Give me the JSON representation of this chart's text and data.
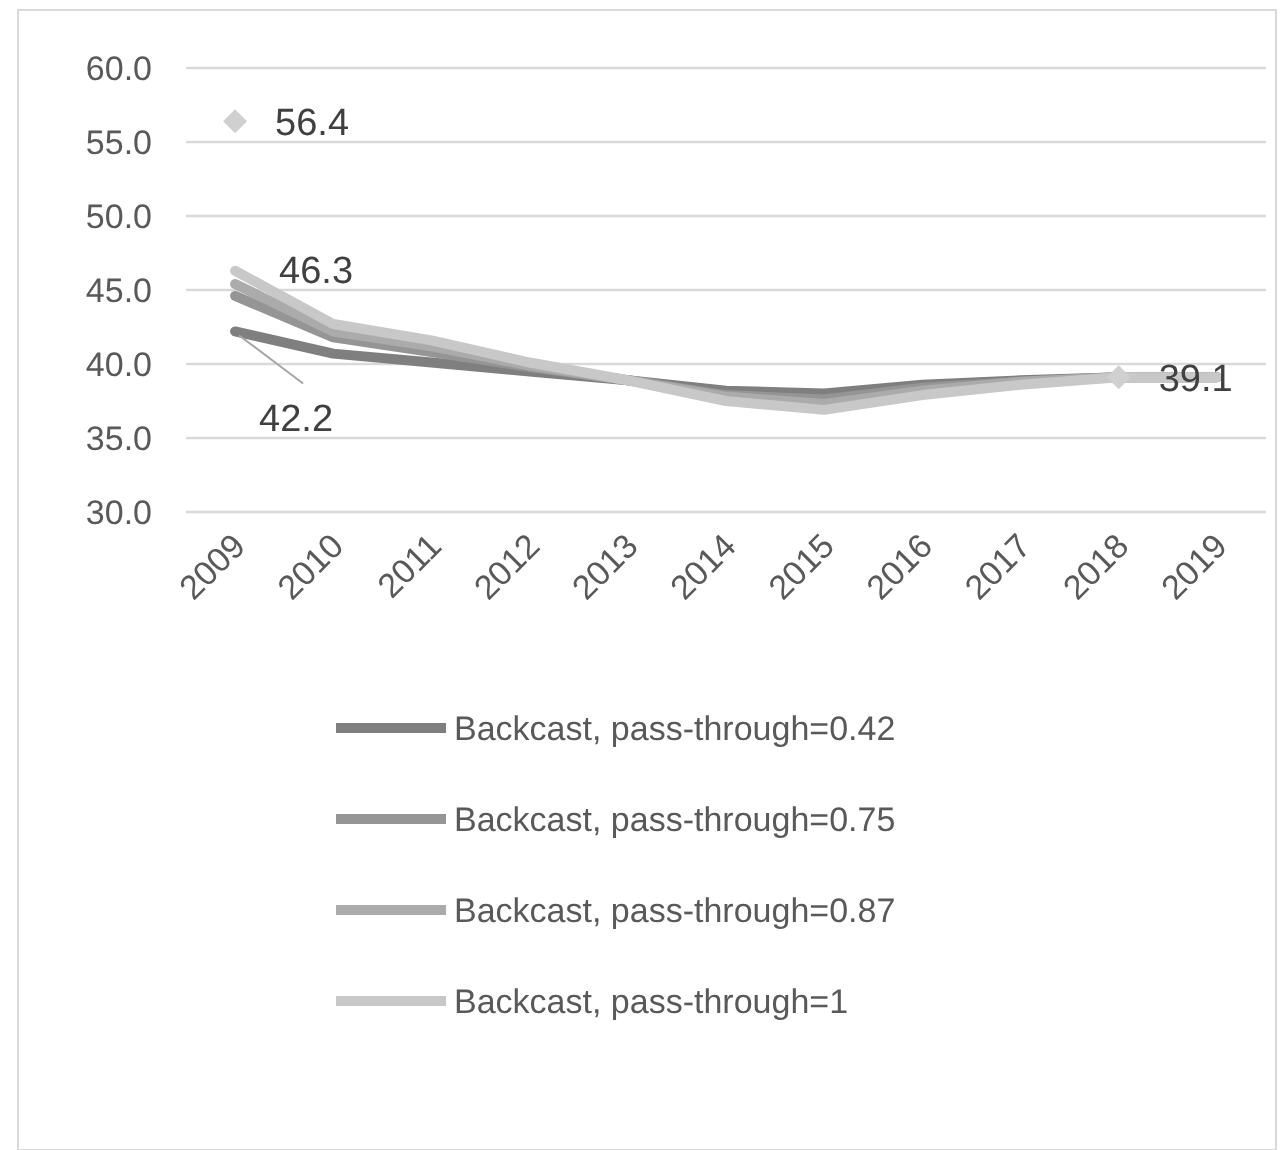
{
  "chart_data": {
    "type": "line",
    "categories": [
      "2009",
      "2010",
      "2011",
      "2012",
      "2013",
      "2014",
      "2015",
      "2016",
      "2017",
      "2018",
      "2019"
    ],
    "series": [
      {
        "name": "Backcast, pass-through=0.42",
        "color": "#7f7f7f",
        "values": [
          42.2,
          40.7,
          40.1,
          39.5,
          38.9,
          38.2,
          38.0,
          38.6,
          38.9,
          39.1,
          39.1
        ],
        "value_labels": [
          "42.2",
          null,
          null,
          null,
          null,
          null,
          null,
          null,
          null,
          null,
          null
        ]
      },
      {
        "name": "Backcast, pass-through=0.75",
        "color": "#959595",
        "values": [
          44.6,
          41.8,
          40.8,
          39.8,
          38.9,
          37.9,
          37.6,
          38.4,
          38.8,
          39.1,
          39.1
        ]
      },
      {
        "name": "Backcast, pass-through=0.87",
        "color": "#ababab",
        "values": [
          45.4,
          42.2,
          41.2,
          39.9,
          38.9,
          37.8,
          37.3,
          38.2,
          38.8,
          39.1,
          39.1
        ]
      },
      {
        "name": "Backcast, pass-through=1",
        "color": "#c8c8c8",
        "values": [
          46.3,
          42.7,
          41.6,
          40.1,
          38.9,
          37.5,
          36.9,
          37.9,
          38.6,
          39.1,
          39.1
        ],
        "value_labels": [
          "46.3",
          null,
          null,
          null,
          null,
          null,
          null,
          null,
          null,
          null,
          null
        ]
      },
      {
        "type": "scatter",
        "marker": "diamond",
        "color": "#d0d0d0",
        "values": [
          56.4,
          null,
          null,
          null,
          null,
          null,
          null,
          null,
          null,
          39.1,
          null
        ],
        "value_labels": [
          "56.4",
          null,
          null,
          null,
          null,
          null,
          null,
          null,
          null,
          "39.1",
          null
        ]
      }
    ],
    "ylim": [
      30,
      60
    ],
    "yticks": [
      {
        "value": 30,
        "label": "30.0"
      },
      {
        "value": 35,
        "label": "35.0"
      },
      {
        "value": 40,
        "label": "40.0"
      },
      {
        "value": 45,
        "label": "45.0"
      },
      {
        "value": 50,
        "label": "50.0"
      },
      {
        "value": 55,
        "label": "55.0"
      },
      {
        "value": 60,
        "label": "60.0"
      }
    ],
    "grid": "y",
    "legend": "bottom",
    "marker": "none",
    "line_style": "solid"
  }
}
